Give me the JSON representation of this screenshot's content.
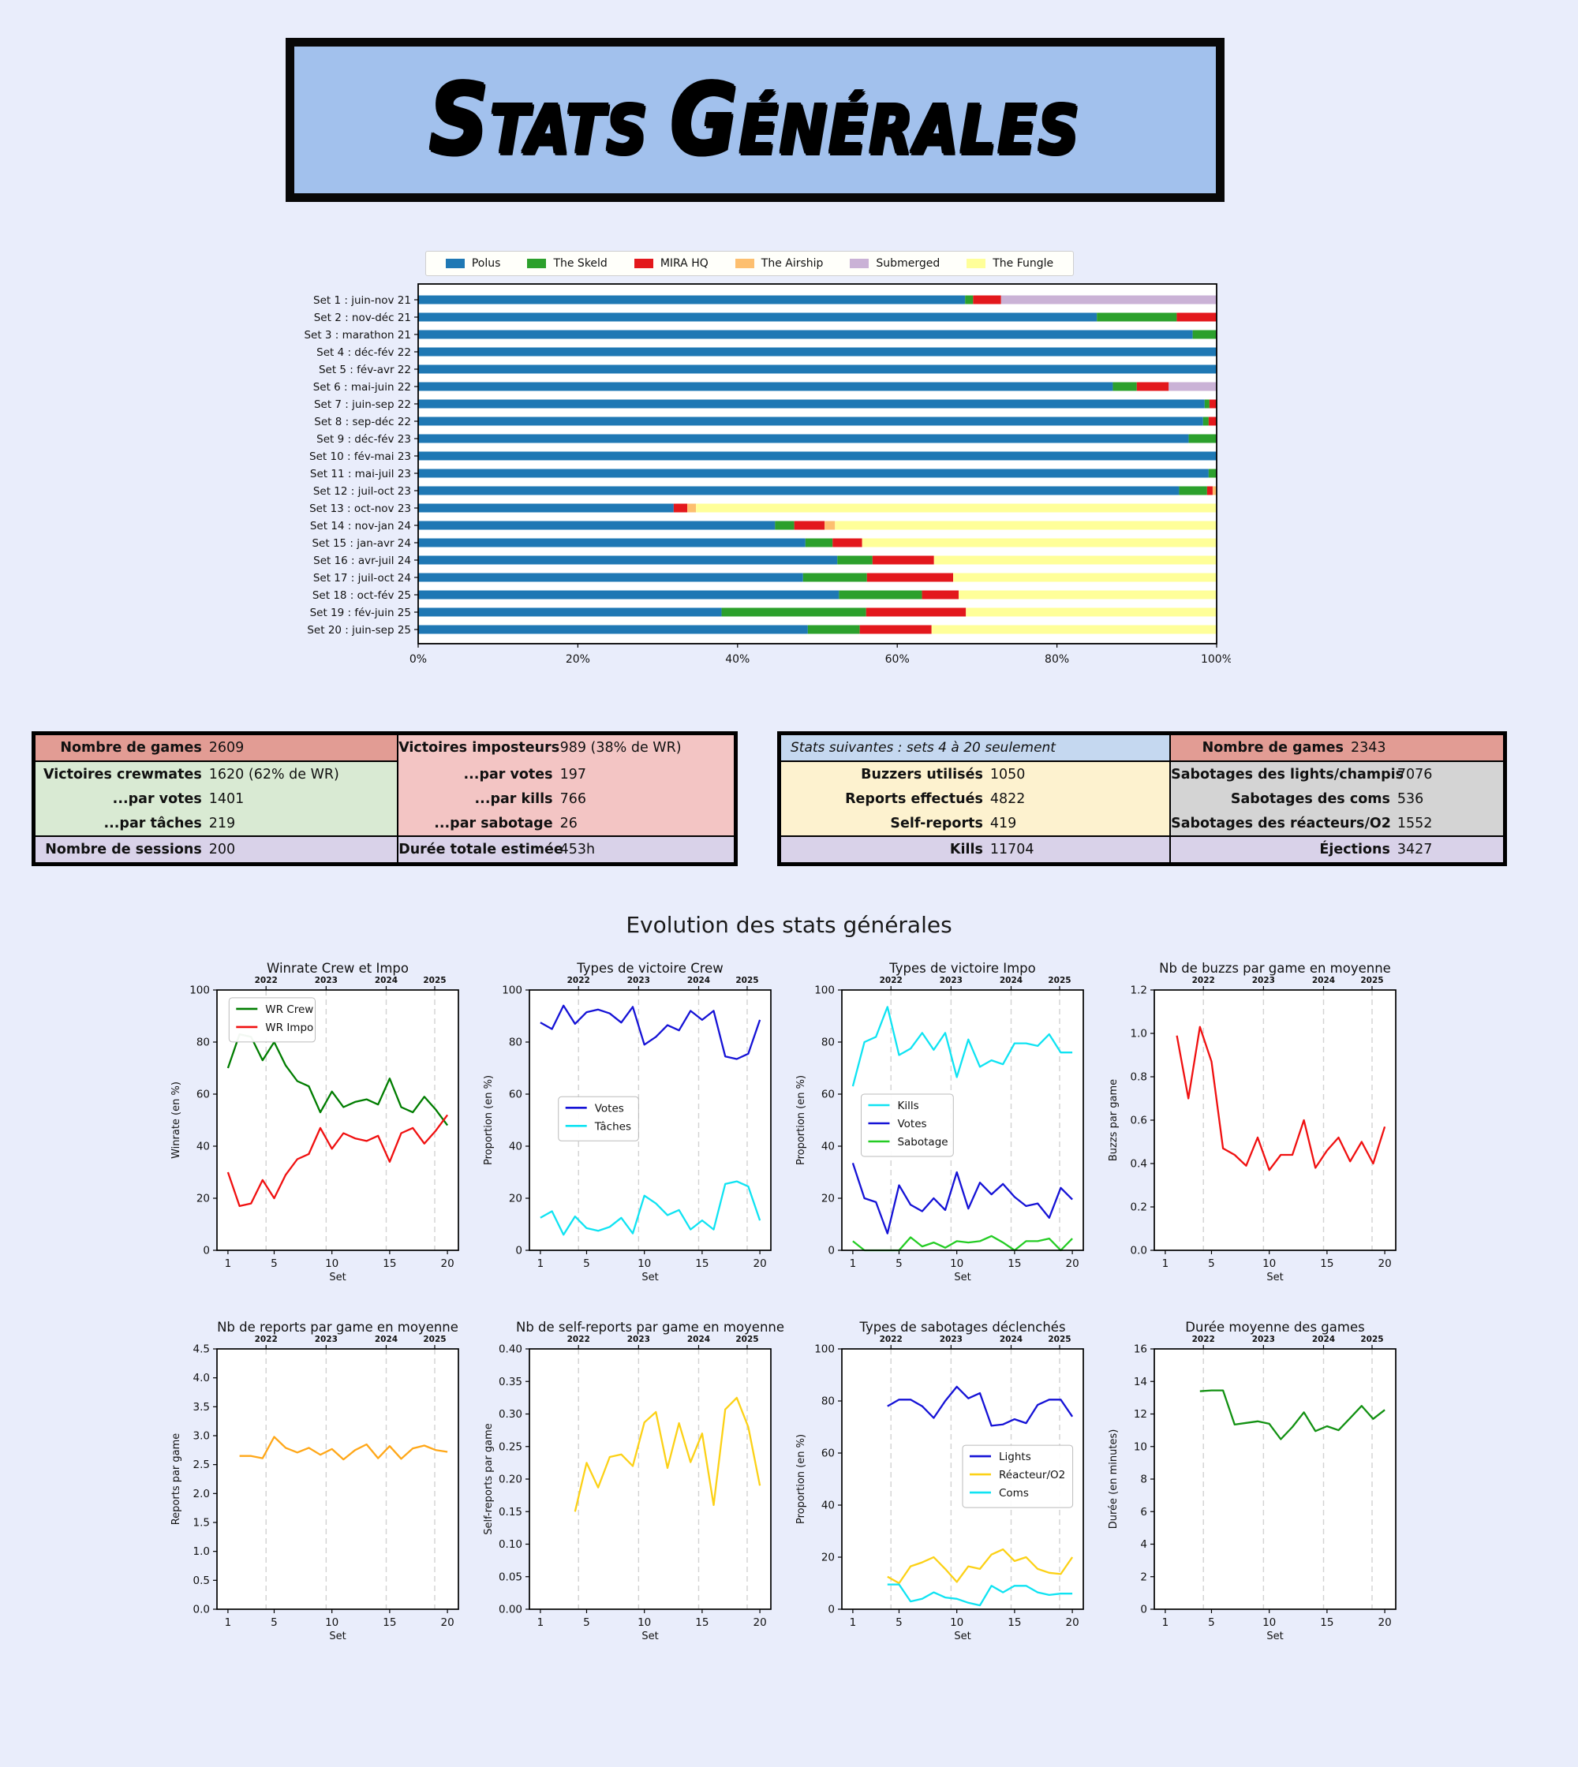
{
  "banner": {
    "title": "Stats générales",
    "bg_color": "#a2c1ed"
  },
  "section_title": "Evolution des stats générales",
  "stat_tables": {
    "left": {
      "top_left": {
        "label": "Nombre de games",
        "value": "2609"
      },
      "top_right": {
        "label": "Victoires imposteurs",
        "value": "989 (38% de WR)"
      },
      "mid_left": [
        {
          "label": "Victoires crewmates",
          "value": "1620 (62% de WR)"
        },
        {
          "label": "...par votes",
          "value": "1401"
        },
        {
          "label": "...par tâches",
          "value": "219"
        }
      ],
      "mid_right": [
        {
          "label": "...par votes",
          "value": "197"
        },
        {
          "label": "...par kills",
          "value": "766"
        },
        {
          "label": "...par sabotage",
          "value": "26"
        }
      ],
      "bottom_left": {
        "label": "Nombre de sessions",
        "value": "200"
      },
      "bottom_right": {
        "label": "Durée totale estimée",
        "value": "453h"
      }
    },
    "right": {
      "top_note": "Stats suivantes : sets 4 à 20 seulement",
      "top_right": {
        "label": "Nombre de games",
        "value": "2343"
      },
      "mid_left": [
        {
          "label": "Buzzers utilisés",
          "value": "1050"
        },
        {
          "label": "Reports effectués",
          "value": "4822"
        },
        {
          "label": "Self-reports",
          "value": "419"
        }
      ],
      "mid_right": [
        {
          "label": "Sabotages des lights/champis",
          "value": "7076"
        },
        {
          "label": "Sabotages des coms",
          "value": "536"
        },
        {
          "label": "Sabotages des réacteurs/O2",
          "value": "1552"
        }
      ],
      "bottom_left": {
        "label": "Kills",
        "value": "11704"
      },
      "bottom_right": {
        "label": "Éjections",
        "value": "3427"
      }
    }
  },
  "year_axis": {
    "labels": [
      "2022",
      "2023",
      "2024",
      "2025"
    ],
    "positions": [
      4.3,
      9.5,
      14.7,
      18.9
    ]
  },
  "xaxis": {
    "ticks": [
      1,
      5,
      10,
      15,
      20
    ],
    "label": "Set",
    "min": 0.05,
    "max": 20.95
  },
  "chart_data": [
    {
      "type": "bar",
      "orientation": "horizontal",
      "stacked": true,
      "xlim": [
        0,
        100
      ],
      "xticklabels": [
        "0%",
        "20%",
        "40%",
        "60%",
        "80%",
        "100%"
      ],
      "categories": [
        "Set 1 : juin-nov 21",
        "Set 2 : nov-déc 21",
        "Set 3 : marathon 21",
        "Set 4 : déc-fév 22",
        "Set 5 : fév-avr 22",
        "Set 6 : mai-juin 22",
        "Set 7 : juin-sep 22",
        "Set 8 : sep-déc 22",
        "Set 9 : déc-fév 23",
        "Set 10 : fév-mai 23",
        "Set 11 : mai-juil 23",
        "Set 12 : juil-oct 23",
        "Set 13 : oct-nov 23",
        "Set 14 : nov-jan 24",
        "Set 15 : jan-avr 24",
        "Set 16 : avr-juil 24",
        "Set 17 : juil-oct 24",
        "Set 18 : oct-fév 25",
        "Set 19 : fév-juin 25",
        "Set 20 : juin-sep 25"
      ],
      "series": [
        {
          "name": "Polus",
          "color": "#1f78b4",
          "values": [
            68.5,
            85,
            97,
            100,
            100,
            87,
            98.5,
            98.3,
            96.5,
            100,
            99,
            95.3,
            32,
            44.7,
            48.5,
            52.5,
            48.2,
            52.7,
            38,
            48.8
          ]
        },
        {
          "name": "The Skeld",
          "color": "#2ca02c",
          "values": [
            1,
            10,
            3,
            0,
            0,
            3,
            0.6,
            0.7,
            3.5,
            0,
            1,
            3.5,
            0,
            2.4,
            3.4,
            4.4,
            8,
            10.4,
            18.1,
            6.5
          ]
        },
        {
          "name": "MIRA HQ",
          "color": "#e3181c",
          "values": [
            3.5,
            5,
            0,
            0,
            0,
            4,
            0.9,
            1,
            0,
            0,
            0,
            0.7,
            1.7,
            3.8,
            3.7,
            7.7,
            10.8,
            4.6,
            12.5,
            9
          ]
        },
        {
          "name": "The Airship",
          "color": "#fdbf6f",
          "values": [
            0,
            0,
            0,
            0,
            0,
            0,
            0,
            0,
            0,
            0,
            0,
            0.5,
            1.1,
            1.3,
            0,
            0,
            0,
            0,
            0,
            0
          ]
        },
        {
          "name": "Submerged",
          "color": "#cab2d6",
          "values": [
            27,
            0,
            0,
            0,
            0,
            6,
            0,
            0,
            0,
            0,
            0,
            0,
            0,
            0,
            0,
            0,
            0,
            0,
            0,
            0
          ]
        },
        {
          "name": "The Fungle",
          "color": "#ffff99",
          "values": [
            0,
            0,
            0,
            0,
            0,
            0,
            0,
            0,
            0,
            0,
            0,
            0,
            65.2,
            47.8,
            44.4,
            35.4,
            33,
            32.3,
            31.4,
            35.7
          ]
        }
      ]
    },
    {
      "type": "line",
      "title": "Winrate Crew et Impo",
      "ylabel": "Winrate (en %)",
      "ymin": 0,
      "ymax": 100,
      "ystep": 20,
      "decimals": 0,
      "legend": {
        "x": 0.05,
        "y": 0.03
      },
      "series": [
        {
          "name": "WR Crew",
          "color": "#007d00",
          "start": 1,
          "values": [
            70,
            83,
            82,
            73,
            80,
            71,
            65,
            63,
            53,
            61,
            55,
            57,
            58,
            56,
            66,
            55,
            53,
            59,
            54,
            48
          ]
        },
        {
          "name": "WR Impo",
          "color": "#f01010",
          "start": 1,
          "values": [
            30,
            17,
            18,
            27,
            20,
            29,
            35,
            37,
            47,
            39,
            45,
            43,
            42,
            44,
            34,
            45,
            47,
            41,
            46,
            52
          ]
        }
      ]
    },
    {
      "type": "line",
      "title": "Types de victoire Crew",
      "ylabel": "Proportion (en %)",
      "ymin": 0,
      "ymax": 100,
      "ystep": 20,
      "decimals": 0,
      "legend": {
        "x": 0.12,
        "y": 0.41
      },
      "series": [
        {
          "name": "Votes",
          "color": "#1512d6",
          "start": 1,
          "values": [
            87.5,
            85,
            94,
            87,
            91.5,
            92.5,
            91,
            87.5,
            93.5,
            79,
            82,
            86.5,
            84.5,
            92,
            88.5,
            92,
            74.5,
            73.5,
            75.5,
            88.5
          ]
        },
        {
          "name": "Tâches",
          "color": "#0fe3f2",
          "start": 1,
          "values": [
            12.5,
            15,
            6,
            13,
            8.5,
            7.5,
            9,
            12.5,
            6.5,
            21,
            18,
            13.5,
            15.5,
            8,
            11.5,
            8,
            25.5,
            26.5,
            24.5,
            11.5
          ]
        }
      ]
    },
    {
      "type": "line",
      "title": "Types de victoire Impo",
      "ylabel": "Proportion (en %)",
      "ymin": 0,
      "ymax": 100,
      "ystep": 20,
      "decimals": 0,
      "legend": {
        "x": 0.08,
        "y": 0.4
      },
      "series": [
        {
          "name": "Kills",
          "color": "#0fe3f2",
          "start": 1,
          "values": [
            63,
            80,
            82,
            93.5,
            75,
            77.5,
            83.5,
            77,
            83.5,
            66.5,
            81,
            70.5,
            73,
            71.5,
            79.5,
            79.5,
            78.5,
            83,
            76,
            76
          ]
        },
        {
          "name": "Votes",
          "color": "#1512d6",
          "start": 1,
          "values": [
            33.5,
            20,
            18.5,
            6.5,
            25,
            17.5,
            15,
            20,
            15.5,
            30,
            16,
            26,
            21.5,
            25.5,
            20.5,
            17,
            18,
            12.5,
            24,
            19.5
          ]
        },
        {
          "name": "Sabotage",
          "color": "#24cc24",
          "start": 1,
          "values": [
            3.5,
            0,
            0,
            0,
            0,
            5,
            1.5,
            3,
            1,
            3.5,
            3,
            3.5,
            5.5,
            3,
            0,
            3.5,
            3.5,
            4.5,
            0,
            4.5
          ]
        }
      ]
    },
    {
      "type": "line",
      "title": "Nb de buzzs par game en moyenne",
      "ylabel": "Buzzs par game",
      "ymin": 0,
      "ymax": 1.2,
      "ystep": 0.2,
      "decimals": 1,
      "series": [
        {
          "name": "Buzzs",
          "color": "#f01010",
          "start": 2,
          "values": [
            0.99,
            0.7,
            1.03,
            0.87,
            0.47,
            0.44,
            0.39,
            0.52,
            0.37,
            0.44,
            0.44,
            0.6,
            0.38,
            0.46,
            0.52,
            0.41,
            0.5,
            0.4,
            0.57
          ]
        }
      ]
    },
    {
      "type": "line",
      "title": "Nb de reports par game en moyenne",
      "ylabel": "Reports par game",
      "ymin": 0,
      "ymax": 4.5,
      "ystep": 0.5,
      "decimals": 1,
      "series": [
        {
          "name": "Reports",
          "color": "#ffa718",
          "start": 2,
          "values": [
            2.65,
            2.65,
            2.61,
            2.98,
            2.79,
            2.71,
            2.79,
            2.67,
            2.77,
            2.59,
            2.75,
            2.85,
            2.61,
            2.82,
            2.6,
            2.78,
            2.83,
            2.75,
            2.72
          ]
        }
      ]
    },
    {
      "type": "line",
      "title": "Nb de self-reports par game en moyenne",
      "ylabel": "Self-reports par game",
      "ymin": 0,
      "ymax": 0.4,
      "ystep": 0.05,
      "decimals": 2,
      "series": [
        {
          "name": "Self-reports",
          "color": "#fcd116",
          "start": 4,
          "values": [
            0.15,
            0.225,
            0.187,
            0.234,
            0.238,
            0.22,
            0.287,
            0.303,
            0.217,
            0.286,
            0.226,
            0.27,
            0.16,
            0.307,
            0.325,
            0.28,
            0.19
          ]
        }
      ]
    },
    {
      "type": "line",
      "title": "Types de sabotages déclenchés",
      "ylabel": "Proportion (en %)",
      "ymin": 0,
      "ymax": 100,
      "ystep": 20,
      "decimals": 0,
      "legend": {
        "x": 0.5,
        "y": 0.37
      },
      "series": [
        {
          "name": "Lights",
          "color": "#1512d6",
          "start": 4,
          "values": [
            78,
            80.5,
            80.5,
            78,
            73.5,
            80,
            85.5,
            81,
            83,
            70.5,
            71,
            73,
            71.5,
            78.5,
            80.5,
            80.5,
            74
          ]
        },
        {
          "name": "Réacteur/O2",
          "color": "#fcd116",
          "start": 4,
          "values": [
            12.5,
            10,
            16.5,
            18,
            20,
            15.5,
            10.5,
            16.5,
            15.5,
            21,
            23,
            18.5,
            20,
            15.5,
            14,
            13.5,
            20
          ]
        },
        {
          "name": "Coms",
          "color": "#0fe3f2",
          "start": 4,
          "values": [
            9.5,
            9.5,
            3,
            4,
            6.5,
            4.5,
            4,
            2.5,
            1.5,
            9,
            6.5,
            9,
            9,
            6.5,
            5.5,
            6,
            6
          ]
        }
      ]
    },
    {
      "type": "line",
      "title": "Durée moyenne des games",
      "ylabel": "Durée (en minutes)",
      "ymin": 0,
      "ymax": 16,
      "ystep": 2,
      "decimals": 0,
      "series": [
        {
          "name": "Durée",
          "color": "#129112",
          "start": 4,
          "values": [
            13.4,
            13.45,
            13.45,
            11.35,
            11.45,
            11.55,
            11.4,
            10.45,
            11.2,
            12.1,
            10.95,
            11.25,
            11.0,
            11.75,
            12.5,
            11.7,
            12.25
          ]
        }
      ]
    }
  ]
}
